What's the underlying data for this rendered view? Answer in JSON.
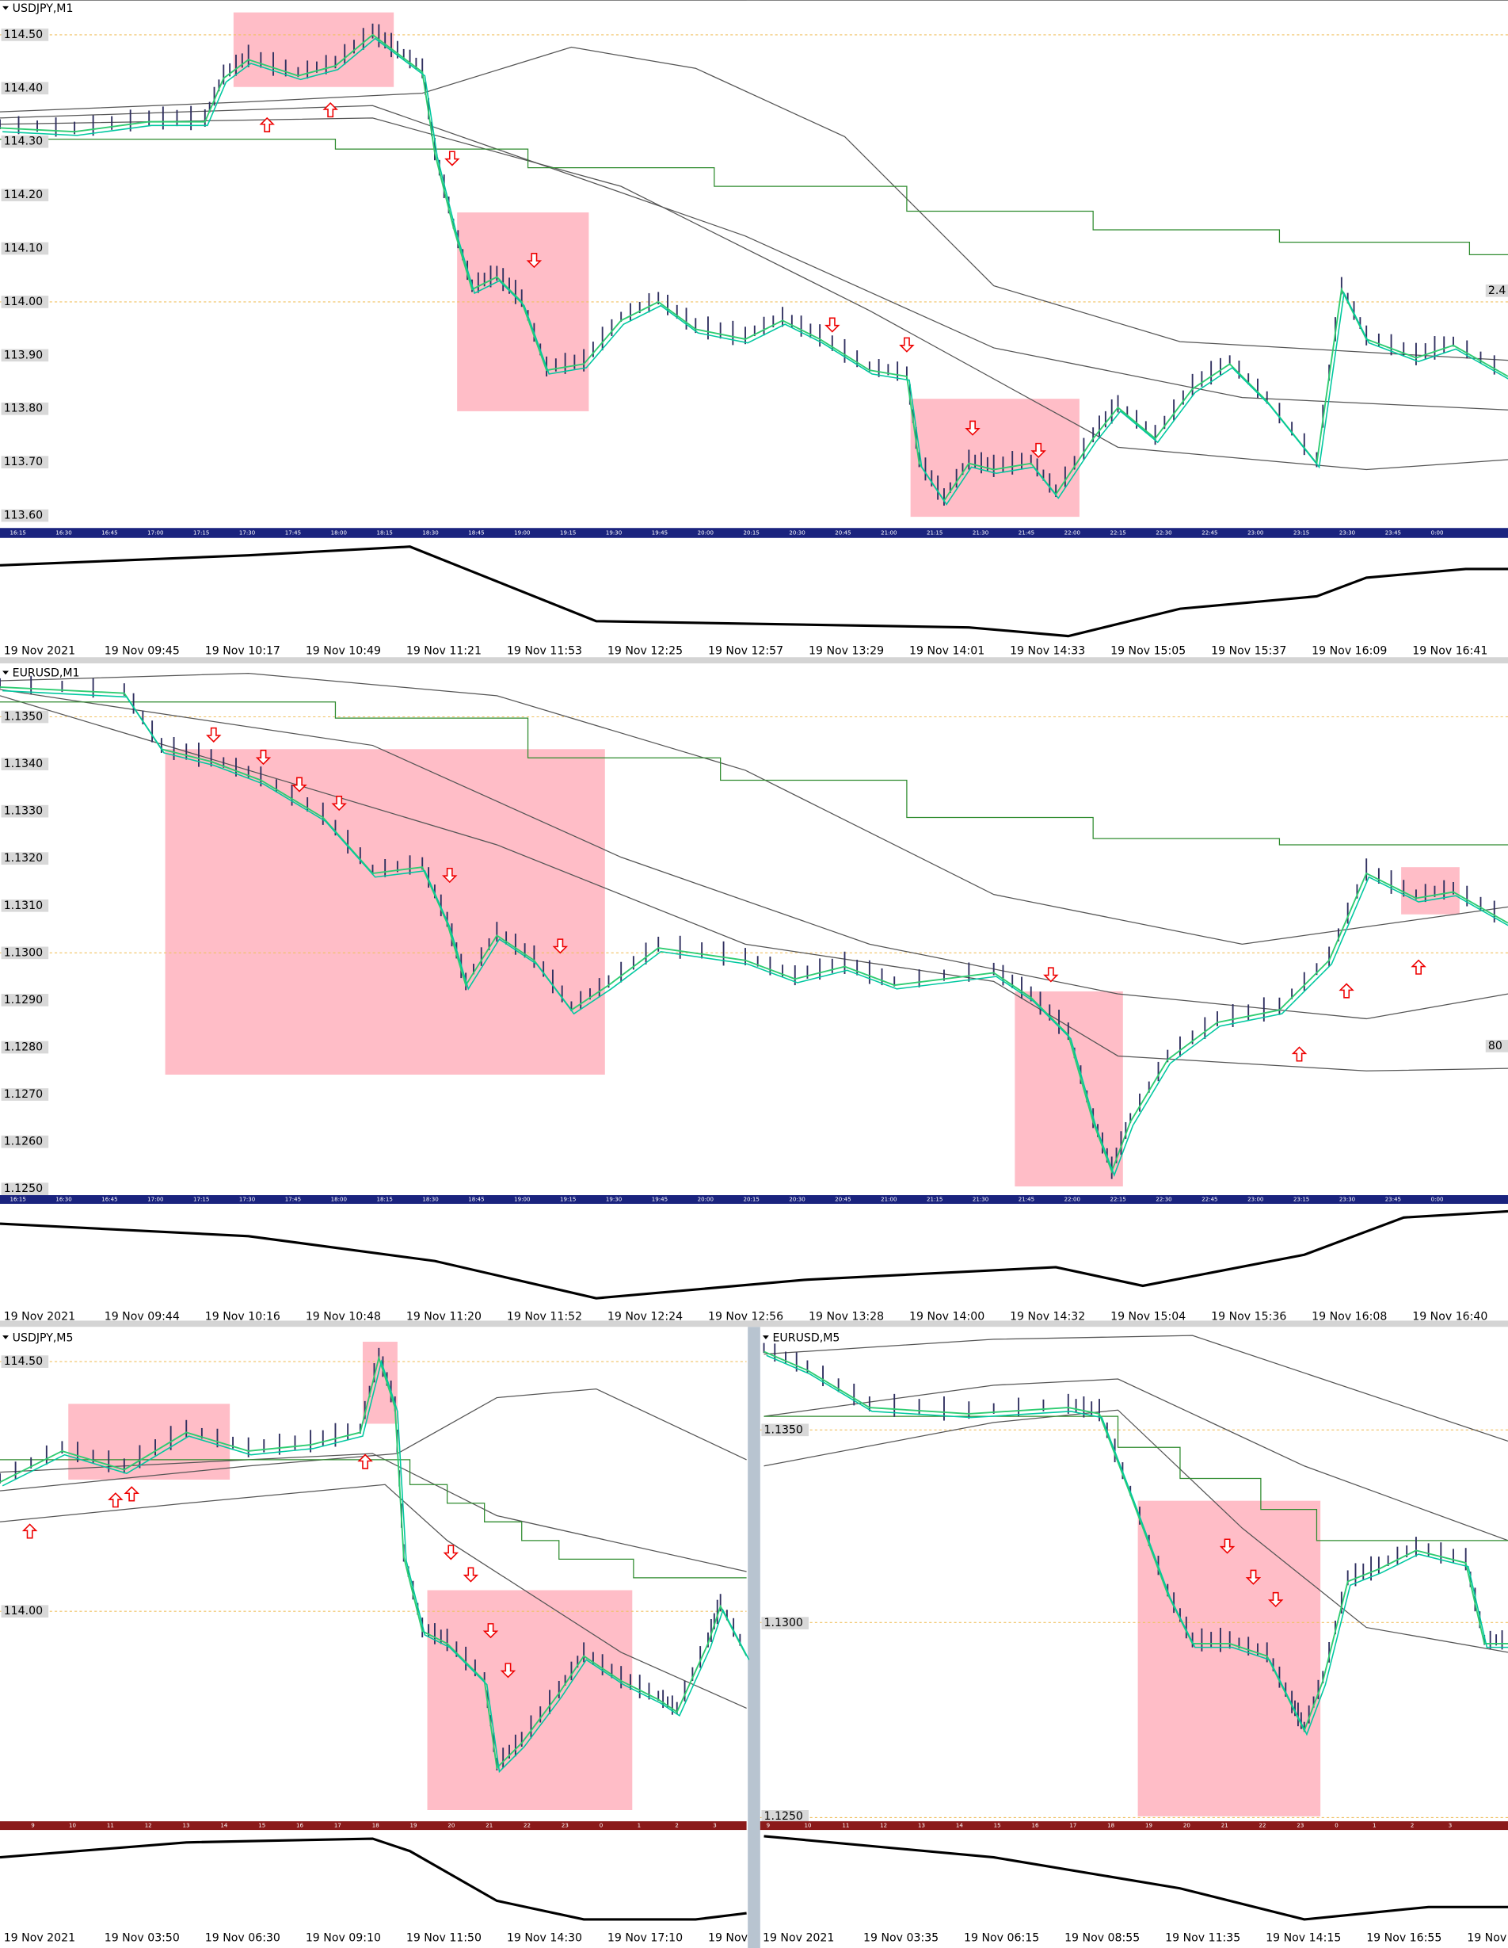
{
  "panels": [
    {
      "symbol": "USDJPY,M1",
      "prices": [
        "114.50",
        "114.40",
        "114.30",
        "114.20",
        "114.10",
        "114.00",
        "113.90",
        "113.80",
        "113.70",
        "113.60"
      ],
      "strip": [
        "16:15",
        "16:30",
        "16:45",
        "17:00",
        "17:15",
        "17:30",
        "17:45",
        "18:00",
        "18:15",
        "18:30",
        "18:45",
        "19:00",
        "19:15",
        "19:30",
        "19:45",
        "20:00",
        "20:15",
        "20:30",
        "20:45",
        "21:00",
        "21:15",
        "21:30",
        "21:45",
        "22:00",
        "22:15",
        "22:30",
        "22:45",
        "23:00",
        "23:15",
        "23:30",
        "23:45",
        "0:00"
      ],
      "times": [
        "19 Nov 2021",
        "19 Nov 09:45",
        "19 Nov 10:17",
        "19 Nov 10:49",
        "19 Nov 11:21",
        "19 Nov 11:53",
        "19 Nov 12:25",
        "19 Nov 12:57",
        "19 Nov 13:29",
        "19 Nov 14:01",
        "19 Nov 14:33",
        "19 Nov 15:05",
        "19 Nov 15:37",
        "19 Nov 16:09",
        "19 Nov 16:41"
      ],
      "side": "2.4"
    },
    {
      "symbol": "EURUSD,M1",
      "prices": [
        "1.1350",
        "1.1340",
        "1.1330",
        "1.1320",
        "1.1310",
        "1.1300",
        "1.1290",
        "1.1280",
        "1.1270",
        "1.1260",
        "1.1250"
      ],
      "strip": [
        "16:15",
        "16:30",
        "16:45",
        "17:00",
        "17:15",
        "17:30",
        "17:45",
        "18:00",
        "18:15",
        "18:30",
        "18:45",
        "19:00",
        "19:15",
        "19:30",
        "19:45",
        "20:00",
        "20:15",
        "20:30",
        "20:45",
        "21:00",
        "21:15",
        "21:30",
        "21:45",
        "22:00",
        "22:15",
        "22:30",
        "22:45",
        "23:00",
        "23:15",
        "23:30",
        "23:45",
        "0:00"
      ],
      "times": [
        "19 Nov 2021",
        "19 Nov 09:44",
        "19 Nov 10:16",
        "19 Nov 10:48",
        "19 Nov 11:20",
        "19 Nov 11:52",
        "19 Nov 12:24",
        "19 Nov 12:56",
        "19 Nov 13:28",
        "19 Nov 14:00",
        "19 Nov 14:32",
        "19 Nov 15:04",
        "19 Nov 15:36",
        "19 Nov 16:08",
        "19 Nov 16:40"
      ],
      "side": "80"
    },
    {
      "symbol": "USDJPY,M5",
      "prices": [
        "114.50",
        "114.00"
      ],
      "strip": [
        "9",
        "10",
        "11",
        "12",
        "13",
        "14",
        "15",
        "16",
        "17",
        "18",
        "19",
        "20",
        "21",
        "22",
        "23",
        "0",
        "1",
        "2",
        "3"
      ],
      "times": [
        "19 Nov 2021",
        "19 Nov 03:50",
        "19 Nov 06:30",
        "19 Nov 09:10",
        "19 Nov 11:50",
        "19 Nov 14:30",
        "19 Nov 17:10",
        "19 Nov"
      ]
    },
    {
      "symbol": "EURUSD,M5",
      "prices": [
        "1.1350",
        "1.1300",
        "1.1250"
      ],
      "strip": [
        "9",
        "10",
        "11",
        "12",
        "13",
        "14",
        "15",
        "16",
        "17",
        "18",
        "19",
        "20",
        "21",
        "22",
        "23",
        "0",
        "1",
        "2",
        "3"
      ],
      "times": [
        "19 Nov 2021",
        "19 Nov 03:35",
        "19 Nov 06:15",
        "19 Nov 08:55",
        "19 Nov 11:35",
        "19 Nov 14:15",
        "19 Nov 16:55",
        "19 Nov"
      ]
    }
  ]
}
